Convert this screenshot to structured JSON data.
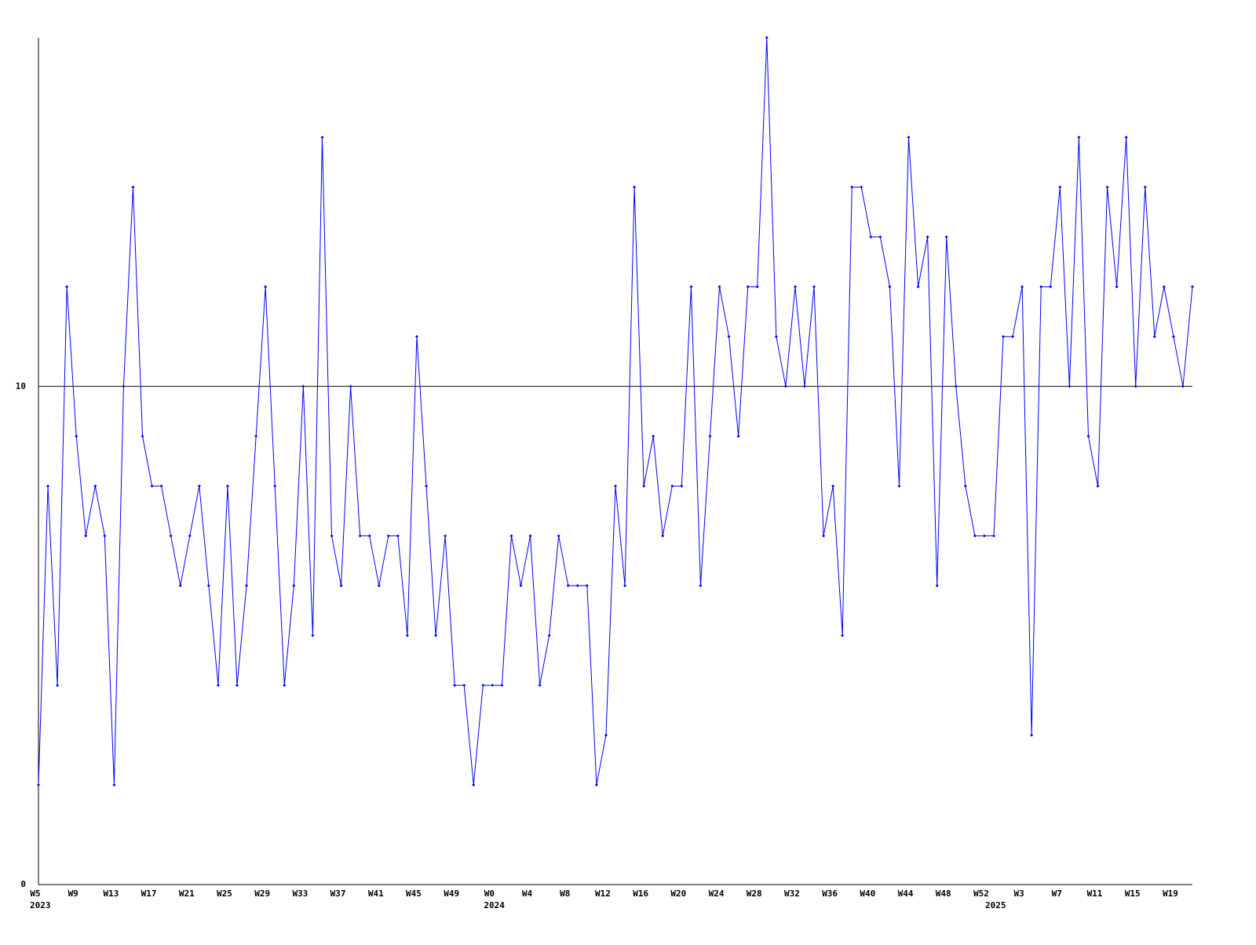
{
  "chart_data": {
    "type": "line",
    "color": "#0000ff",
    "categories": [
      "W5",
      null,
      null,
      null,
      "W9",
      null,
      null,
      null,
      "W13",
      null,
      null,
      null,
      "W17",
      null,
      null,
      null,
      "W21",
      null,
      null,
      null,
      "W25",
      null,
      null,
      null,
      "W29",
      null,
      null,
      null,
      "W33",
      null,
      null,
      null,
      "W37",
      null,
      null,
      null,
      "W41",
      null,
      null,
      null,
      "W45",
      null,
      null,
      null,
      "W49",
      null,
      null,
      null,
      "W0",
      null,
      null,
      null,
      "W4",
      null,
      null,
      null,
      "W8",
      null,
      null,
      null,
      "W12",
      null,
      null,
      null,
      "W16",
      null,
      null,
      null,
      "W20",
      null,
      null,
      null,
      "W24",
      null,
      null,
      null,
      "W28",
      null,
      null,
      null,
      "W32",
      null,
      null,
      null,
      "W36",
      null,
      null,
      null,
      "W40",
      null,
      null,
      null,
      "W44",
      null,
      null,
      null,
      "W48",
      null,
      null,
      null,
      "W52",
      null,
      null,
      null,
      "W3",
      null,
      null,
      null,
      "W7",
      null,
      null,
      null,
      "W11",
      null,
      null,
      null,
      "W15",
      null,
      null,
      null,
      "W19",
      null,
      null
    ],
    "x_groups": [
      {
        "label": "2023",
        "index": 0
      },
      {
        "label": "2024",
        "index": 48
      },
      {
        "label": "2025",
        "index": 101
      }
    ],
    "values": [
      2,
      8,
      4,
      12,
      9,
      7,
      8,
      7,
      2,
      10,
      14,
      9,
      8,
      8,
      7,
      6,
      7,
      8,
      6,
      4,
      8,
      4,
      6,
      9,
      12,
      8,
      4,
      6,
      10,
      5,
      15,
      7,
      6,
      10,
      7,
      7,
      6,
      7,
      7,
      5,
      11,
      8,
      5,
      7,
      4,
      4,
      2,
      4,
      4,
      4,
      7,
      6,
      7,
      4,
      5,
      7,
      6,
      6,
      6,
      2,
      3,
      8,
      6,
      14,
      8,
      9,
      7,
      8,
      8,
      12,
      6,
      9,
      12,
      11,
      9,
      12,
      12,
      17,
      11,
      10,
      12,
      10,
      12,
      7,
      8,
      5,
      14,
      14,
      13,
      13,
      12,
      8,
      15,
      12,
      13,
      6,
      13,
      10,
      8,
      7,
      7,
      7,
      11,
      11,
      12,
      3,
      12,
      12,
      14,
      10,
      15,
      9,
      8,
      14,
      12,
      15,
      10,
      14,
      11,
      12,
      11,
      10,
      12
    ],
    "ylim": [
      0,
      17
    ],
    "yticks": [
      0,
      10
    ],
    "grid": true
  }
}
